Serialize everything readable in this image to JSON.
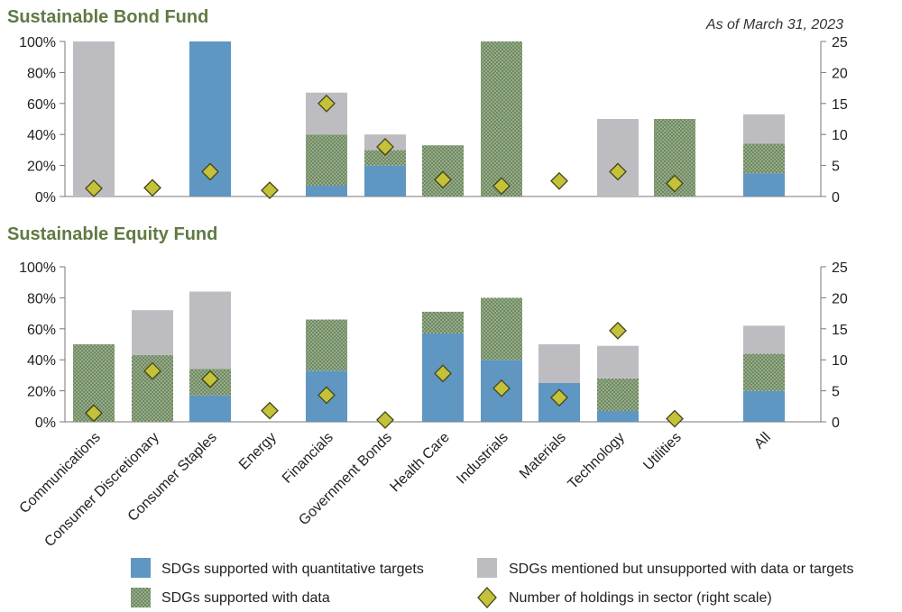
{
  "as_of": "As of March 31, 2023",
  "colors": {
    "quant": "#5f96c2",
    "data": "#6f8a62",
    "data_dot": "#c6d3b8",
    "mentioned": "#bdbdc1",
    "diamond": "#c4c13a",
    "diamond_stroke": "#44451a",
    "title": "#5f7a43",
    "axis": "#777777"
  },
  "legend": [
    {
      "key": "quant",
      "label": "SDGs supported with quantitative targets"
    },
    {
      "key": "mentioned",
      "label": "SDGs mentioned but unsupported with data or targets"
    },
    {
      "key": "data",
      "label": "SDGs supported with data"
    },
    {
      "key": "diamond",
      "label": "Number of holdings in sector (right scale)"
    }
  ],
  "chart_data": [
    {
      "type": "bar",
      "stacked": true,
      "title": "Sustainable Bond Fund",
      "categories": [
        "Communications",
        "Consumer Discretionary",
        "Consumer Staples",
        "Energy",
        "Financials",
        "Government Bonds",
        "Health Care",
        "Industrials",
        "Materials",
        "Technology",
        "Utilities",
        "All"
      ],
      "ylim": [
        0,
        100
      ],
      "yticks": [
        "0%",
        "20%",
        "40%",
        "60%",
        "80%",
        "100%"
      ],
      "y2lim": [
        0,
        25
      ],
      "y2ticks": [
        "0",
        "5",
        "10",
        "15",
        "20",
        "25"
      ],
      "series": [
        {
          "name": "SDGs supported with quantitative targets",
          "key": "quant",
          "values": [
            0,
            0,
            100,
            0,
            7,
            20,
            0,
            0,
            0,
            0,
            0,
            15
          ]
        },
        {
          "name": "SDGs supported with data",
          "key": "data",
          "values": [
            0,
            0,
            0,
            0,
            33,
            10,
            33,
            100,
            0,
            0,
            50,
            19
          ]
        },
        {
          "name": "SDGs mentioned but unsupported with data or targets",
          "key": "mentioned",
          "values": [
            100,
            0,
            0,
            0,
            27,
            10,
            0,
            0,
            0,
            50,
            0,
            19
          ]
        }
      ],
      "holdings": [
        1.3,
        1.4,
        4,
        1,
        15,
        8,
        2.7,
        1.7,
        2.5,
        4,
        2.1,
        null
      ]
    },
    {
      "type": "bar",
      "stacked": true,
      "title": "Sustainable Equity Fund",
      "categories": [
        "Communications",
        "Consumer Discretionary",
        "Consumer Staples",
        "Energy",
        "Financials",
        "Government Bonds",
        "Health Care",
        "Industrials",
        "Materials",
        "Technology",
        "Utilities",
        "All"
      ],
      "ylim": [
        0,
        100
      ],
      "yticks": [
        "0%",
        "20%",
        "40%",
        "60%",
        "80%",
        "100%"
      ],
      "y2lim": [
        0,
        25
      ],
      "y2ticks": [
        "0",
        "5",
        "10",
        "15",
        "20",
        "25"
      ],
      "series": [
        {
          "name": "SDGs supported with quantitative targets",
          "key": "quant",
          "values": [
            0,
            0,
            17,
            0,
            33,
            0,
            57,
            40,
            25,
            7,
            0,
            20
          ]
        },
        {
          "name": "SDGs supported with data",
          "key": "data",
          "values": [
            50,
            43,
            17,
            0,
            33,
            0,
            14,
            40,
            0,
            21,
            0,
            24
          ]
        },
        {
          "name": "SDGs mentioned but unsupported with data or targets",
          "key": "mentioned",
          "values": [
            0,
            29,
            50,
            0,
            0,
            0,
            0,
            0,
            25,
            21,
            0,
            18
          ]
        }
      ],
      "holdings": [
        1.4,
        8.2,
        6.9,
        1.8,
        4.3,
        0.3,
        7.8,
        5.4,
        3.9,
        14.7,
        0.5,
        null
      ]
    }
  ]
}
